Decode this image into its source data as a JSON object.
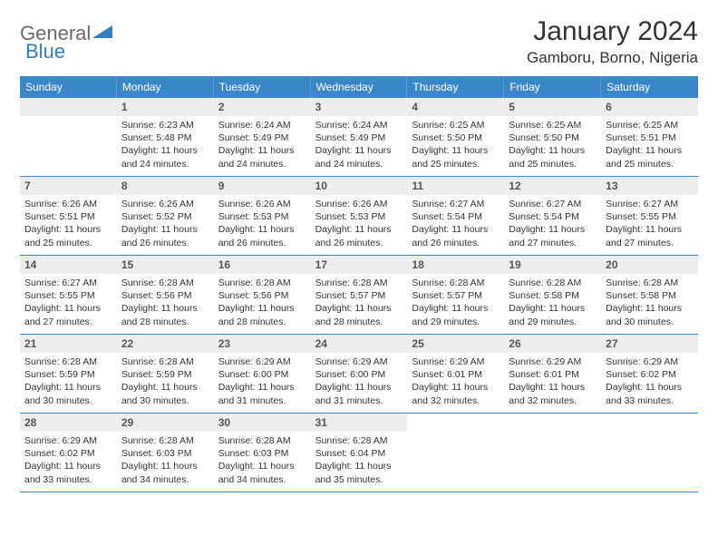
{
  "logo": {
    "general": "General",
    "blue": "Blue"
  },
  "title": "January 2024",
  "location": "Gamboru, Borno, Nigeria",
  "colors": {
    "header_bg": "#3a87c8",
    "daynum_bg": "#ededed",
    "border": "#3a87c8",
    "logo_gray": "#6a6a6a",
    "logo_blue": "#2f7ec0"
  },
  "weekdays": [
    "Sunday",
    "Monday",
    "Tuesday",
    "Wednesday",
    "Thursday",
    "Friday",
    "Saturday"
  ],
  "weeks": [
    [
      {
        "n": "",
        "sunrise": "",
        "sunset": "",
        "daylight": ""
      },
      {
        "n": "1",
        "sunrise": "Sunrise: 6:23 AM",
        "sunset": "Sunset: 5:48 PM",
        "daylight": "Daylight: 11 hours and 24 minutes."
      },
      {
        "n": "2",
        "sunrise": "Sunrise: 6:24 AM",
        "sunset": "Sunset: 5:49 PM",
        "daylight": "Daylight: 11 hours and 24 minutes."
      },
      {
        "n": "3",
        "sunrise": "Sunrise: 6:24 AM",
        "sunset": "Sunset: 5:49 PM",
        "daylight": "Daylight: 11 hours and 24 minutes."
      },
      {
        "n": "4",
        "sunrise": "Sunrise: 6:25 AM",
        "sunset": "Sunset: 5:50 PM",
        "daylight": "Daylight: 11 hours and 25 minutes."
      },
      {
        "n": "5",
        "sunrise": "Sunrise: 6:25 AM",
        "sunset": "Sunset: 5:50 PM",
        "daylight": "Daylight: 11 hours and 25 minutes."
      },
      {
        "n": "6",
        "sunrise": "Sunrise: 6:25 AM",
        "sunset": "Sunset: 5:51 PM",
        "daylight": "Daylight: 11 hours and 25 minutes."
      }
    ],
    [
      {
        "n": "7",
        "sunrise": "Sunrise: 6:26 AM",
        "sunset": "Sunset: 5:51 PM",
        "daylight": "Daylight: 11 hours and 25 minutes."
      },
      {
        "n": "8",
        "sunrise": "Sunrise: 6:26 AM",
        "sunset": "Sunset: 5:52 PM",
        "daylight": "Daylight: 11 hours and 26 minutes."
      },
      {
        "n": "9",
        "sunrise": "Sunrise: 6:26 AM",
        "sunset": "Sunset: 5:53 PM",
        "daylight": "Daylight: 11 hours and 26 minutes."
      },
      {
        "n": "10",
        "sunrise": "Sunrise: 6:26 AM",
        "sunset": "Sunset: 5:53 PM",
        "daylight": "Daylight: 11 hours and 26 minutes."
      },
      {
        "n": "11",
        "sunrise": "Sunrise: 6:27 AM",
        "sunset": "Sunset: 5:54 PM",
        "daylight": "Daylight: 11 hours and 26 minutes."
      },
      {
        "n": "12",
        "sunrise": "Sunrise: 6:27 AM",
        "sunset": "Sunset: 5:54 PM",
        "daylight": "Daylight: 11 hours and 27 minutes."
      },
      {
        "n": "13",
        "sunrise": "Sunrise: 6:27 AM",
        "sunset": "Sunset: 5:55 PM",
        "daylight": "Daylight: 11 hours and 27 minutes."
      }
    ],
    [
      {
        "n": "14",
        "sunrise": "Sunrise: 6:27 AM",
        "sunset": "Sunset: 5:55 PM",
        "daylight": "Daylight: 11 hours and 27 minutes."
      },
      {
        "n": "15",
        "sunrise": "Sunrise: 6:28 AM",
        "sunset": "Sunset: 5:56 PM",
        "daylight": "Daylight: 11 hours and 28 minutes."
      },
      {
        "n": "16",
        "sunrise": "Sunrise: 6:28 AM",
        "sunset": "Sunset: 5:56 PM",
        "daylight": "Daylight: 11 hours and 28 minutes."
      },
      {
        "n": "17",
        "sunrise": "Sunrise: 6:28 AM",
        "sunset": "Sunset: 5:57 PM",
        "daylight": "Daylight: 11 hours and 28 minutes."
      },
      {
        "n": "18",
        "sunrise": "Sunrise: 6:28 AM",
        "sunset": "Sunset: 5:57 PM",
        "daylight": "Daylight: 11 hours and 29 minutes."
      },
      {
        "n": "19",
        "sunrise": "Sunrise: 6:28 AM",
        "sunset": "Sunset: 5:58 PM",
        "daylight": "Daylight: 11 hours and 29 minutes."
      },
      {
        "n": "20",
        "sunrise": "Sunrise: 6:28 AM",
        "sunset": "Sunset: 5:58 PM",
        "daylight": "Daylight: 11 hours and 30 minutes."
      }
    ],
    [
      {
        "n": "21",
        "sunrise": "Sunrise: 6:28 AM",
        "sunset": "Sunset: 5:59 PM",
        "daylight": "Daylight: 11 hours and 30 minutes."
      },
      {
        "n": "22",
        "sunrise": "Sunrise: 6:28 AM",
        "sunset": "Sunset: 5:59 PM",
        "daylight": "Daylight: 11 hours and 30 minutes."
      },
      {
        "n": "23",
        "sunrise": "Sunrise: 6:29 AM",
        "sunset": "Sunset: 6:00 PM",
        "daylight": "Daylight: 11 hours and 31 minutes."
      },
      {
        "n": "24",
        "sunrise": "Sunrise: 6:29 AM",
        "sunset": "Sunset: 6:00 PM",
        "daylight": "Daylight: 11 hours and 31 minutes."
      },
      {
        "n": "25",
        "sunrise": "Sunrise: 6:29 AM",
        "sunset": "Sunset: 6:01 PM",
        "daylight": "Daylight: 11 hours and 32 minutes."
      },
      {
        "n": "26",
        "sunrise": "Sunrise: 6:29 AM",
        "sunset": "Sunset: 6:01 PM",
        "daylight": "Daylight: 11 hours and 32 minutes."
      },
      {
        "n": "27",
        "sunrise": "Sunrise: 6:29 AM",
        "sunset": "Sunset: 6:02 PM",
        "daylight": "Daylight: 11 hours and 33 minutes."
      }
    ],
    [
      {
        "n": "28",
        "sunrise": "Sunrise: 6:29 AM",
        "sunset": "Sunset: 6:02 PM",
        "daylight": "Daylight: 11 hours and 33 minutes."
      },
      {
        "n": "29",
        "sunrise": "Sunrise: 6:28 AM",
        "sunset": "Sunset: 6:03 PM",
        "daylight": "Daylight: 11 hours and 34 minutes."
      },
      {
        "n": "30",
        "sunrise": "Sunrise: 6:28 AM",
        "sunset": "Sunset: 6:03 PM",
        "daylight": "Daylight: 11 hours and 34 minutes."
      },
      {
        "n": "31",
        "sunrise": "Sunrise: 6:28 AM",
        "sunset": "Sunset: 6:04 PM",
        "daylight": "Daylight: 11 hours and 35 minutes."
      },
      {
        "n": "",
        "sunrise": "",
        "sunset": "",
        "daylight": ""
      },
      {
        "n": "",
        "sunrise": "",
        "sunset": "",
        "daylight": ""
      },
      {
        "n": "",
        "sunrise": "",
        "sunset": "",
        "daylight": ""
      }
    ]
  ]
}
